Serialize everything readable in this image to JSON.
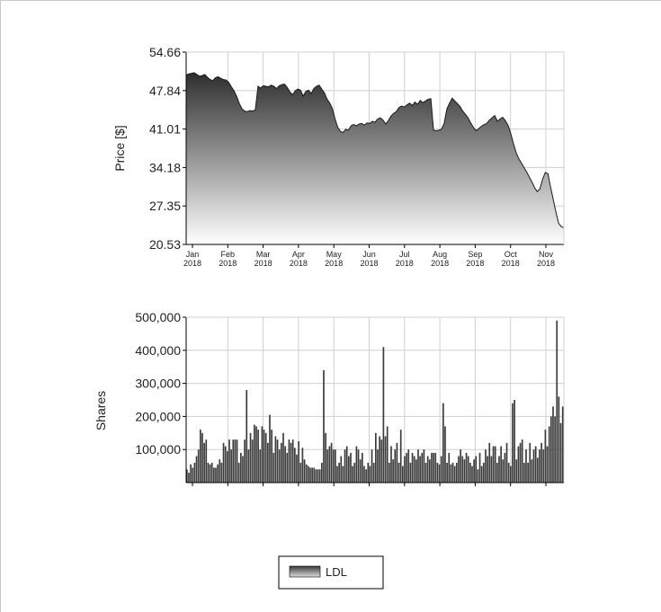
{
  "chart_data": [
    {
      "type": "area",
      "ylabel": "Price [$]",
      "ylim": [
        20.53,
        54.66
      ],
      "yticks": [
        "54.66",
        "47.84",
        "41.01",
        "34.18",
        "27.35",
        "20.53"
      ],
      "xticks": [
        {
          "m": "Jan",
          "y": "2018"
        },
        {
          "m": "Feb",
          "y": "2018"
        },
        {
          "m": "Mar",
          "y": "2018"
        },
        {
          "m": "Apr",
          "y": "2018"
        },
        {
          "m": "May",
          "y": "2018"
        },
        {
          "m": "Jun",
          "y": "2018"
        },
        {
          "m": "Jul",
          "y": "2018"
        },
        {
          "m": "Aug",
          "y": "2018"
        },
        {
          "m": "Sep",
          "y": "2018"
        },
        {
          "m": "Oct",
          "y": "2018"
        },
        {
          "m": "Nov",
          "y": "2018"
        }
      ],
      "grid": true,
      "series": [
        {
          "name": "LDL",
          "values": [
            50.6,
            50.8,
            50.9,
            51.0,
            50.7,
            50.4,
            50.5,
            50.7,
            50.2,
            49.8,
            49.6,
            50.1,
            50.3,
            50.0,
            49.8,
            49.7,
            49.3,
            48.5,
            47.8,
            46.8,
            45.5,
            44.6,
            44.2,
            44.1,
            44.3,
            44.2,
            44.4,
            48.6,
            48.3,
            48.7,
            48.6,
            48.5,
            48.8,
            48.6,
            48.2,
            48.7,
            48.9,
            49.0,
            48.4,
            47.6,
            47.1,
            47.8,
            48.1,
            47.9,
            46.9,
            47.7,
            47.9,
            47.3,
            48.2,
            48.6,
            48.8,
            48.1,
            47.4,
            46.3,
            45.6,
            44.6,
            42.8,
            41.3,
            40.6,
            40.4,
            41.0,
            40.8,
            41.6,
            41.8,
            41.6,
            41.9,
            42.0,
            41.7,
            42.1,
            42.0,
            42.4,
            42.2,
            42.8,
            43.0,
            42.6,
            41.9,
            42.5,
            43.3,
            43.8,
            44.1,
            44.8,
            45.1,
            44.9,
            45.3,
            45.6,
            45.2,
            45.8,
            45.4,
            46.1,
            45.7,
            46.0,
            46.3,
            46.4,
            40.8,
            40.7,
            40.8,
            41.0,
            42.0,
            44.6,
            45.6,
            46.5,
            46.0,
            45.5,
            45.0,
            44.2,
            43.6,
            43.0,
            42.1,
            41.3,
            40.7,
            41.1,
            41.5,
            41.8,
            42.0,
            42.6,
            43.0,
            43.4,
            42.4,
            42.8,
            43.1,
            42.5,
            41.7,
            40.3,
            38.5,
            36.9,
            35.8,
            35.0,
            34.2,
            33.4,
            32.5,
            31.6,
            30.6,
            29.9,
            30.4,
            32.1,
            33.3,
            33.1,
            30.7,
            28.5,
            26.3,
            24.3,
            23.7,
            23.5
          ]
        }
      ]
    },
    {
      "type": "bar",
      "ylabel": "Shares",
      "ylim": [
        0,
        500000
      ],
      "yticks": [
        "500,000",
        "400,000",
        "300,000",
        "200,000",
        "100,000"
      ],
      "grid": true,
      "series": [
        {
          "name": "LDL",
          "values": [
            40000,
            30000,
            55000,
            45000,
            60000,
            80000,
            100000,
            160000,
            150000,
            120000,
            130000,
            60000,
            55000,
            60000,
            45000,
            45000,
            55000,
            70000,
            60000,
            120000,
            110000,
            95000,
            130000,
            100000,
            130000,
            130000,
            130000,
            60000,
            90000,
            80000,
            130000,
            280000,
            100000,
            150000,
            130000,
            175000,
            170000,
            160000,
            100000,
            170000,
            160000,
            150000,
            120000,
            205000,
            160000,
            90000,
            140000,
            130000,
            100000,
            120000,
            150000,
            110000,
            90000,
            130000,
            120000,
            130000,
            105000,
            85000,
            125000,
            60000,
            105000,
            70000,
            55000,
            50000,
            45000,
            45000,
            45000,
            40000,
            40000,
            40000,
            60000,
            340000,
            150000,
            100000,
            110000,
            120000,
            100000,
            100000,
            50000,
            60000,
            80000,
            50000,
            100000,
            110000,
            80000,
            90000,
            50000,
            60000,
            110000,
            100000,
            70000,
            90000,
            50000,
            40000,
            60000,
            50000,
            100000,
            60000,
            150000,
            100000,
            140000,
            130000,
            410000,
            140000,
            170000,
            60000,
            110000,
            70000,
            100000,
            120000,
            60000,
            160000,
            50000,
            80000,
            90000,
            100000,
            60000,
            90000,
            80000,
            70000,
            100000,
            80000,
            90000,
            100000,
            60000,
            80000,
            70000,
            90000,
            90000,
            90000,
            60000,
            55000,
            80000,
            240000,
            170000,
            60000,
            90000,
            55000,
            60000,
            50000,
            60000,
            80000,
            100000,
            80000,
            70000,
            90000,
            80000,
            60000,
            50000,
            70000,
            80000,
            40000,
            90000,
            50000,
            60000,
            100000,
            80000,
            120000,
            80000,
            110000,
            110000,
            60000,
            80000,
            110000,
            70000,
            90000,
            120000,
            60000,
            50000,
            240000,
            250000,
            70000,
            110000,
            120000,
            130000,
            60000,
            100000,
            60000,
            120000,
            70000,
            100000,
            110000,
            75000,
            100000,
            120000,
            100000,
            160000,
            110000,
            170000,
            200000,
            230000,
            200000,
            490000,
            260000,
            180000,
            230000
          ]
        }
      ]
    }
  ],
  "legend": {
    "label": "LDL"
  }
}
